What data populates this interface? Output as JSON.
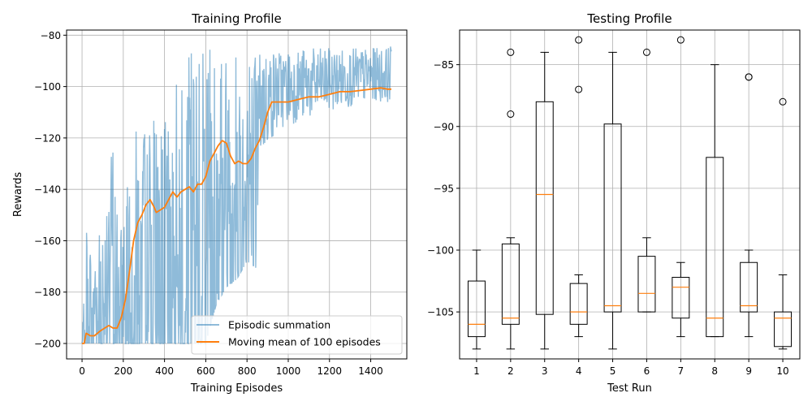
{
  "chart_data": [
    {
      "type": "line",
      "title": "Training Profile",
      "xlabel": "Training Episodes",
      "ylabel": "Rewards",
      "xlim": [
        -75,
        1575
      ],
      "ylim": [
        -206,
        -78
      ],
      "xticks": [
        0,
        200,
        400,
        600,
        800,
        1000,
        1200,
        1400
      ],
      "yticks": [
        -200,
        -180,
        -160,
        -140,
        -120,
        -100,
        -80
      ],
      "grid": true,
      "legend_position": "lower right",
      "series": [
        {
          "name": "Episodic summation",
          "color": "#1f77b4",
          "alpha": 0.5,
          "envelope": {
            "x": [
              0,
              25,
              50,
              100,
              150,
              180,
              200,
              230,
              260,
              300,
              350,
              400,
              450,
              500,
              550,
              600,
              650,
              700,
              750,
              800,
              850,
              860,
              900,
              950,
              1000,
              1100,
              1200,
              1300,
              1400,
              1500
            ],
            "upper": [
              -200,
              -147,
              -165,
              -150,
              -115,
              -160,
              -150,
              -113,
              -116,
              -113,
              -112,
              -115,
              -85,
              -85,
              -85,
              -85,
              -85,
              -85,
              -85,
              -85,
              -85,
              -85,
              -85,
              -85,
              -85,
              -85,
              -85,
              -85,
              -85,
              -84
            ],
            "lower": [
              -200,
              -200,
              -200,
              -200,
              -200,
              -200,
              -200,
              -200,
              -200,
              -200,
              -200,
              -200,
              -200,
              -200,
              -200,
              -200,
              -185,
              -178,
              -175,
              -168,
              -171,
              -130,
              -124,
              -118,
              -115,
              -113,
              -110,
              -108,
              -106,
              -106
            ]
          }
        },
        {
          "name": "Moving mean of 100 episodes",
          "color": "#ff7f0e",
          "x": [
            0,
            10,
            20,
            40,
            60,
            90,
            110,
            130,
            150,
            170,
            190,
            210,
            230,
            250,
            270,
            290,
            310,
            330,
            350,
            360,
            380,
            400,
            420,
            440,
            460,
            480,
            500,
            520,
            540,
            560,
            580,
            600,
            620,
            640,
            660,
            680,
            700,
            720,
            740,
            760,
            780,
            800,
            820,
            840,
            860,
            880,
            900,
            920,
            950,
            1000,
            1050,
            1100,
            1150,
            1200,
            1250,
            1300,
            1350,
            1400,
            1450,
            1480,
            1500
          ],
          "y": [
            -200,
            -200,
            -196,
            -197,
            -197,
            -195,
            -194,
            -193,
            -194,
            -194,
            -190,
            -183,
            -172,
            -160,
            -153,
            -150,
            -146,
            -144,
            -147,
            -149,
            -148,
            -147,
            -144,
            -141,
            -143,
            -141,
            -140,
            -139,
            -141,
            -138,
            -138,
            -135,
            -129,
            -126,
            -123,
            -121,
            -122,
            -127,
            -130,
            -129,
            -130,
            -130,
            -128,
            -124,
            -121,
            -116,
            -110,
            -106,
            -106,
            -106,
            -105,
            -104,
            -104,
            -103,
            -102,
            -102,
            -101.5,
            -101,
            -100.5,
            -101,
            -101
          ]
        }
      ]
    },
    {
      "type": "box",
      "title": "Testing Profile",
      "xlabel": "Test Run",
      "ylabel": "",
      "categories": [
        "1",
        "2",
        "3",
        "4",
        "5",
        "6",
        "7",
        "8",
        "9",
        "10"
      ],
      "ylim": [
        -108.8,
        -82.2
      ],
      "yticks": [
        -105,
        -100,
        -95,
        -90,
        -85
      ],
      "grid": true,
      "boxes": [
        {
          "whislo": -108,
          "q1": -107,
          "med": -106,
          "q3": -102.5,
          "whishi": -100,
          "fliers": []
        },
        {
          "whislo": -108,
          "q1": -106,
          "med": -105.5,
          "q3": -99.5,
          "whishi": -99,
          "fliers": [
            -84,
            -89
          ]
        },
        {
          "whislo": -108,
          "q1": -105.2,
          "med": -95.5,
          "q3": -88,
          "whishi": -84,
          "fliers": []
        },
        {
          "whislo": -107,
          "q1": -106,
          "med": -105,
          "q3": -102.7,
          "whishi": -102,
          "fliers": [
            -83,
            -87
          ]
        },
        {
          "whislo": -108,
          "q1": -105,
          "med": -104.5,
          "q3": -89.8,
          "whishi": -84,
          "fliers": []
        },
        {
          "whislo": -105,
          "q1": -105,
          "med": -103.5,
          "q3": -100.5,
          "whishi": -99,
          "fliers": [
            -84
          ]
        },
        {
          "whislo": -107,
          "q1": -105.5,
          "med": -103,
          "q3": -102.2,
          "whishi": -101,
          "fliers": [
            -83
          ]
        },
        {
          "whislo": -107,
          "q1": -107,
          "med": -105.5,
          "q3": -92.5,
          "whishi": -85,
          "fliers": []
        },
        {
          "whislo": -107,
          "q1": -105,
          "med": -104.5,
          "q3": -101,
          "whishi": -100,
          "fliers": [
            -86,
            -86
          ]
        },
        {
          "whislo": -108,
          "q1": -107.8,
          "med": -105.5,
          "q3": -105,
          "whishi": -102,
          "fliers": [
            -88
          ]
        }
      ]
    }
  ]
}
